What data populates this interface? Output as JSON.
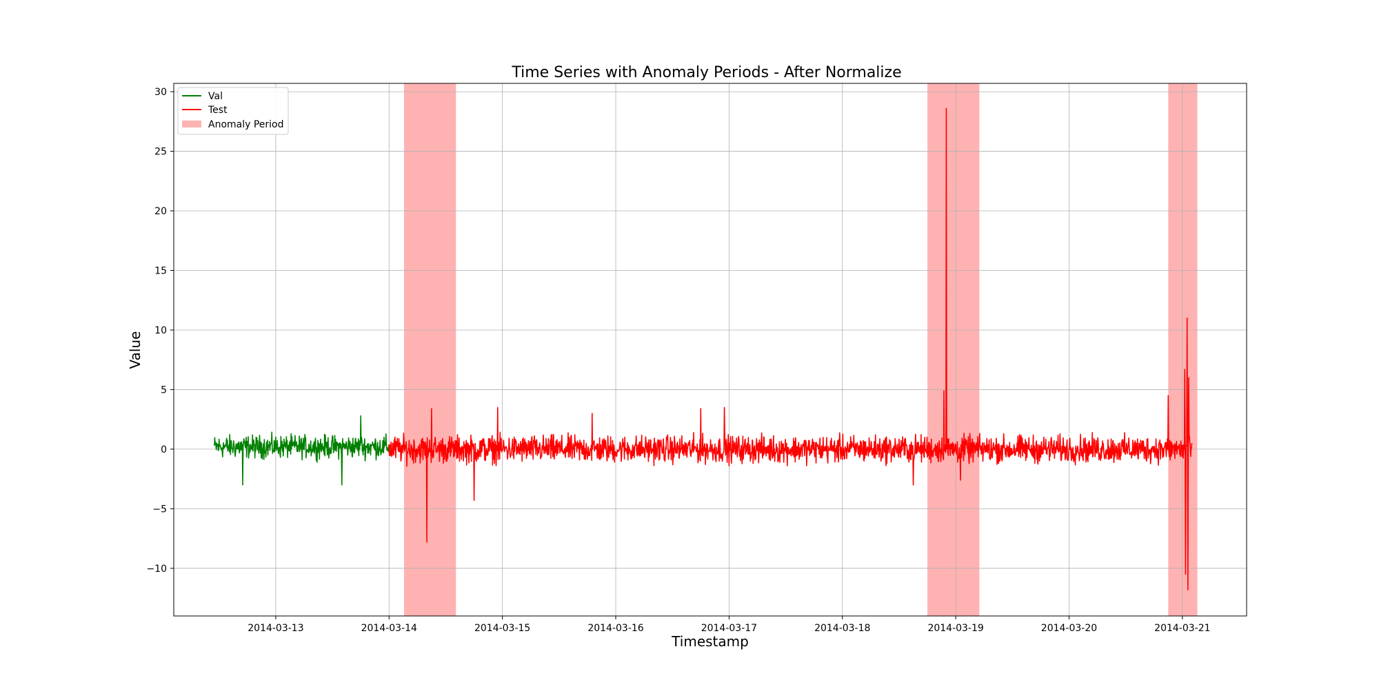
{
  "chart_data": {
    "type": "line",
    "title": "Time Series with Anomaly Periods - After Normalize",
    "xlabel": "Timestamp",
    "ylabel": "Value",
    "xlim": [
      "2014-03-12T02:24",
      "2014-03-21T13:36"
    ],
    "ylim": [
      -14,
      30.7
    ],
    "x_ticks": [
      "2014-03-13",
      "2014-03-14",
      "2014-03-15",
      "2014-03-16",
      "2014-03-17",
      "2014-03-18",
      "2014-03-19",
      "2014-03-20",
      "2014-03-21"
    ],
    "y_ticks": [
      30,
      25,
      20,
      15,
      10,
      5,
      0,
      -5,
      -10
    ],
    "y_tick_labels": [
      "30",
      "25",
      "20",
      "15",
      "10",
      "5",
      "0",
      "−5",
      "−10"
    ],
    "grid": true,
    "legend_position": "top-left",
    "series": [
      {
        "name": "Val",
        "color": "#008000",
        "x_start": "2014-03-12T11:00",
        "x_end": "2014-03-14T00:00",
        "baseline": 0.2,
        "amplitude": 2.5,
        "spikes": [
          {
            "x": "2014-03-12T17:00",
            "y": -3.0
          },
          {
            "x": "2014-03-13T14:00",
            "y": -3.0
          },
          {
            "x": "2014-03-13T18:00",
            "y": 2.8
          }
        ]
      },
      {
        "name": "Test",
        "color": "#ff0000",
        "x_start": "2014-03-14T00:00",
        "x_end": "2014-03-21T02:00",
        "baseline": 0.0,
        "amplitude": 3.0,
        "spikes": [
          {
            "x": "2014-03-14T08:00",
            "y": -7.8
          },
          {
            "x": "2014-03-14T09:00",
            "y": 3.4
          },
          {
            "x": "2014-03-14T23:00",
            "y": 3.5
          },
          {
            "x": "2014-03-14T18:00",
            "y": -4.3
          },
          {
            "x": "2014-03-15T19:00",
            "y": 3.0
          },
          {
            "x": "2014-03-16T18:00",
            "y": 3.4
          },
          {
            "x": "2014-03-16T23:00",
            "y": 3.5
          },
          {
            "x": "2014-03-18T15:00",
            "y": -3.0
          },
          {
            "x": "2014-03-18T21:30",
            "y": 4.9
          },
          {
            "x": "2014-03-18T22:00",
            "y": 28.6
          },
          {
            "x": "2014-03-19T01:00",
            "y": -2.6
          },
          {
            "x": "2014-03-20T21:00",
            "y": 4.5
          },
          {
            "x": "2014-03-21T00:30",
            "y": 6.7
          },
          {
            "x": "2014-03-21T00:40",
            "y": -10.5
          },
          {
            "x": "2014-03-21T01:00",
            "y": 11.0
          },
          {
            "x": "2014-03-21T01:10",
            "y": -11.8
          },
          {
            "x": "2014-03-21T01:20",
            "y": 6.0
          }
        ]
      }
    ],
    "anomaly_legend_label": "Anomaly Period",
    "anomaly_color": "#ff0000",
    "anomaly_periods": [
      {
        "start": "2014-03-14T03:10",
        "end": "2014-03-14T14:10"
      },
      {
        "start": "2014-03-18T18:00",
        "end": "2014-03-19T05:00"
      },
      {
        "start": "2014-03-20T21:00",
        "end": "2014-03-21T03:10"
      }
    ]
  }
}
